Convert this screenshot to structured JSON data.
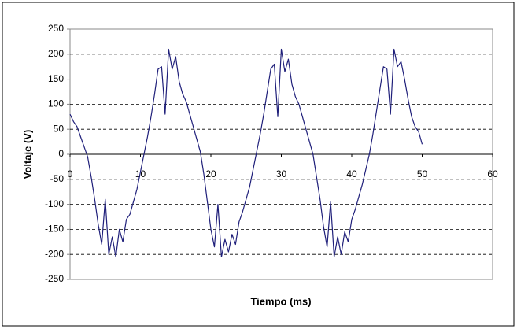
{
  "chart_data": {
    "type": "line",
    "xlabel": "Tiempo (ms)",
    "ylabel": "Voltaje (V)",
    "x": [
      0,
      0.5,
      1,
      1.5,
      2,
      2.5,
      3,
      3.5,
      4,
      4.5,
      5,
      5.5,
      6,
      6.5,
      7,
      7.5,
      8,
      8.5,
      9,
      9.5,
      10,
      10.5,
      11,
      11.5,
      12,
      12.5,
      13,
      13.5,
      14,
      14.5,
      15,
      15.5,
      16,
      16.5,
      17,
      17.5,
      18,
      18.5,
      19,
      19.5,
      20,
      20.5,
      21,
      21.5,
      22,
      22.5,
      23,
      23.5,
      24,
      24.5,
      25,
      25.5,
      26,
      26.5,
      27,
      27.5,
      28,
      28.5,
      29,
      29.5,
      30,
      30.5,
      31,
      31.5,
      32,
      32.5,
      33,
      33.5,
      34,
      34.5,
      35,
      35.5,
      36,
      36.5,
      37,
      37.5,
      38,
      38.5,
      39,
      39.5,
      40,
      40.5,
      41,
      41.5,
      42,
      42.5,
      43,
      43.5,
      44,
      44.5,
      45,
      45.5,
      46,
      46.5,
      47,
      47.5,
      48,
      48.5,
      49,
      49.5,
      50
    ],
    "values": [
      80,
      65,
      55,
      35,
      15,
      -5,
      -45,
      -90,
      -140,
      -180,
      -90,
      -200,
      -165,
      -205,
      -150,
      -175,
      -130,
      -120,
      -95,
      -70,
      -35,
      0,
      35,
      75,
      120,
      170,
      175,
      80,
      210,
      170,
      195,
      145,
      120,
      105,
      80,
      55,
      30,
      5,
      -40,
      -95,
      -150,
      -185,
      -100,
      -205,
      -170,
      -195,
      -160,
      -180,
      -135,
      -115,
      -90,
      -65,
      -30,
      5,
      40,
      80,
      125,
      170,
      180,
      75,
      210,
      165,
      190,
      140,
      115,
      100,
      75,
      50,
      25,
      0,
      -45,
      -90,
      -145,
      -185,
      -95,
      -205,
      -165,
      -200,
      -155,
      -175,
      -130,
      -110,
      -85,
      -60,
      -30,
      0,
      40,
      85,
      130,
      175,
      170,
      80,
      210,
      175,
      185,
      150,
      110,
      75,
      55,
      45,
      20
    ],
    "color": "#1f1f7a",
    "xlim": [
      0,
      60
    ],
    "xticks": [
      0,
      10,
      20,
      30,
      40,
      50,
      60
    ],
    "ylim": [
      -250,
      250
    ],
    "yticks": [
      -250,
      -200,
      -150,
      -100,
      -50,
      0,
      50,
      100,
      150,
      200,
      250
    ],
    "grid": true
  }
}
